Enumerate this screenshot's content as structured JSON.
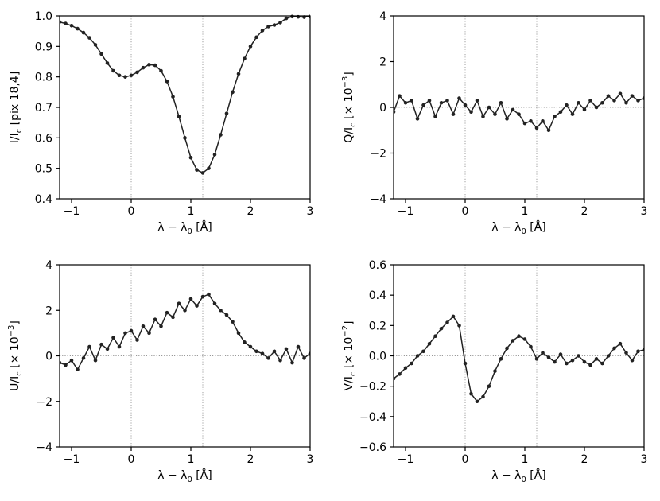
{
  "chart_data": [
    {
      "type": "line",
      "panel": "I",
      "xlabel": "λ − λ₀ [Å]",
      "ylabel": "I/I_c [pix 18,4]",
      "ylabel_parts": {
        "main": "I/I",
        "sub": "c",
        "rest": " [pix 18,4]"
      },
      "xlim": [
        -1.2,
        3.0
      ],
      "ylim": [
        0.4,
        1.0
      ],
      "xticks": [
        -1,
        0,
        1,
        2,
        3
      ],
      "xtick_labels": [
        "−1",
        "0",
        "1",
        "2",
        "3"
      ],
      "yticks": [
        0.4,
        0.5,
        0.6,
        0.7,
        0.8,
        0.9,
        1.0
      ],
      "ytick_labels": [
        "0.4",
        "0.5",
        "0.6",
        "0.7",
        "0.8",
        "0.9",
        "1.0"
      ],
      "vlines": [
        0,
        1.2
      ],
      "hline": null,
      "series": [
        {
          "x": [
            -1.2,
            -1.1,
            -1.0,
            -0.9,
            -0.8,
            -0.7,
            -0.6,
            -0.5,
            -0.4,
            -0.3,
            -0.2,
            -0.1,
            0.0,
            0.1,
            0.2,
            0.3,
            0.4,
            0.5,
            0.6,
            0.7,
            0.8,
            0.9,
            1.0,
            1.1,
            1.2,
            1.3,
            1.4,
            1.5,
            1.6,
            1.7,
            1.8,
            1.9,
            2.0,
            2.1,
            2.2,
            2.3,
            2.4,
            2.5,
            2.6,
            2.7,
            2.8,
            2.9,
            3.0
          ],
          "y": [
            0.98,
            0.975,
            0.968,
            0.958,
            0.945,
            0.928,
            0.905,
            0.875,
            0.845,
            0.82,
            0.805,
            0.8,
            0.805,
            0.815,
            0.83,
            0.84,
            0.838,
            0.82,
            0.785,
            0.735,
            0.67,
            0.6,
            0.535,
            0.495,
            0.485,
            0.5,
            0.545,
            0.61,
            0.68,
            0.75,
            0.81,
            0.86,
            0.9,
            0.93,
            0.952,
            0.965,
            0.97,
            0.978,
            0.992,
            0.998,
            0.997,
            0.996,
            0.998
          ]
        }
      ]
    },
    {
      "type": "line",
      "panel": "Q",
      "xlabel": "λ − λ₀ [Å]",
      "ylabel": "Q/I_c [× 10^−3]",
      "ylabel_parts": {
        "main": "Q/I",
        "sub": "c",
        "rest": " [× 10",
        "sup": "−3",
        "end": "]"
      },
      "xlim": [
        -1.2,
        3.0
      ],
      "ylim": [
        -4,
        4
      ],
      "xticks": [
        -1,
        0,
        1,
        2,
        3
      ],
      "xtick_labels": [
        "−1",
        "0",
        "1",
        "2",
        "3"
      ],
      "yticks": [
        -4,
        -2,
        0,
        2,
        4
      ],
      "ytick_labels": [
        "−4",
        "−2",
        "0",
        "2",
        "4"
      ],
      "vlines": [
        0,
        1.2
      ],
      "hline": 0,
      "series": [
        {
          "x": [
            -1.2,
            -1.1,
            -1.0,
            -0.9,
            -0.8,
            -0.7,
            -0.6,
            -0.5,
            -0.4,
            -0.3,
            -0.2,
            -0.1,
            0.0,
            0.1,
            0.2,
            0.3,
            0.4,
            0.5,
            0.6,
            0.7,
            0.8,
            0.9,
            1.0,
            1.1,
            1.2,
            1.3,
            1.4,
            1.5,
            1.6,
            1.7,
            1.8,
            1.9,
            2.0,
            2.1,
            2.2,
            2.3,
            2.4,
            2.5,
            2.6,
            2.7,
            2.8,
            2.9,
            3.0
          ],
          "y": [
            -0.2,
            0.5,
            0.2,
            0.3,
            -0.5,
            0.1,
            0.3,
            -0.4,
            0.2,
            0.3,
            -0.3,
            0.4,
            0.1,
            -0.2,
            0.3,
            -0.4,
            0.0,
            -0.3,
            0.2,
            -0.5,
            -0.1,
            -0.3,
            -0.7,
            -0.6,
            -0.9,
            -0.6,
            -1.0,
            -0.4,
            -0.2,
            0.1,
            -0.3,
            0.2,
            -0.1,
            0.3,
            0.0,
            0.2,
            0.5,
            0.3,
            0.6,
            0.2,
            0.5,
            0.3,
            0.4
          ]
        }
      ]
    },
    {
      "type": "line",
      "panel": "U",
      "xlabel": "λ − λ₀ [Å]",
      "ylabel": "U/I_c [× 10^−3]",
      "ylabel_parts": {
        "main": "U/I",
        "sub": "c",
        "rest": " [× 10",
        "sup": "−3",
        "end": "]"
      },
      "xlim": [
        -1.2,
        3.0
      ],
      "ylim": [
        -4,
        4
      ],
      "xticks": [
        -1,
        0,
        1,
        2,
        3
      ],
      "xtick_labels": [
        "−1",
        "0",
        "1",
        "2",
        "3"
      ],
      "yticks": [
        -4,
        -2,
        0,
        2,
        4
      ],
      "ytick_labels": [
        "−4",
        "−2",
        "0",
        "2",
        "4"
      ],
      "vlines": [
        0,
        1.2
      ],
      "hline": 0,
      "series": [
        {
          "x": [
            -1.2,
            -1.1,
            -1.0,
            -0.9,
            -0.8,
            -0.7,
            -0.6,
            -0.5,
            -0.4,
            -0.3,
            -0.2,
            -0.1,
            0.0,
            0.1,
            0.2,
            0.3,
            0.4,
            0.5,
            0.6,
            0.7,
            0.8,
            0.9,
            1.0,
            1.1,
            1.2,
            1.3,
            1.4,
            1.5,
            1.6,
            1.7,
            1.8,
            1.9,
            2.0,
            2.1,
            2.2,
            2.3,
            2.4,
            2.5,
            2.6,
            2.7,
            2.8,
            2.9,
            3.0
          ],
          "y": [
            -0.3,
            -0.4,
            -0.2,
            -0.6,
            -0.1,
            0.4,
            -0.2,
            0.5,
            0.3,
            0.8,
            0.4,
            1.0,
            1.1,
            0.7,
            1.3,
            1.0,
            1.6,
            1.3,
            1.9,
            1.7,
            2.3,
            2.0,
            2.5,
            2.2,
            2.6,
            2.7,
            2.3,
            2.0,
            1.8,
            1.5,
            1.0,
            0.6,
            0.4,
            0.2,
            0.1,
            -0.1,
            0.2,
            -0.2,
            0.3,
            -0.3,
            0.4,
            -0.1,
            0.1
          ]
        }
      ]
    },
    {
      "type": "line",
      "panel": "V",
      "xlabel": "λ − λ₀ [Å]",
      "ylabel": "V/I_c [× 10^−2]",
      "ylabel_parts": {
        "main": "V/I",
        "sub": "c",
        "rest": " [× 10",
        "sup": "−2",
        "end": "]"
      },
      "xlim": [
        -1.2,
        3.0
      ],
      "ylim": [
        -0.6,
        0.6
      ],
      "xticks": [
        -1,
        0,
        1,
        2,
        3
      ],
      "xtick_labels": [
        "−1",
        "0",
        "1",
        "2",
        "3"
      ],
      "yticks": [
        -0.6,
        -0.4,
        -0.2,
        0.0,
        0.2,
        0.4,
        0.6
      ],
      "ytick_labels": [
        "−0.6",
        "−0.4",
        "−0.2",
        "0.0",
        "0.2",
        "0.4",
        "0.6"
      ],
      "vlines": [
        0,
        1.2
      ],
      "hline": 0,
      "series": [
        {
          "x": [
            -1.2,
            -1.1,
            -1.0,
            -0.9,
            -0.8,
            -0.7,
            -0.6,
            -0.5,
            -0.4,
            -0.3,
            -0.2,
            -0.1,
            0.0,
            0.1,
            0.2,
            0.3,
            0.4,
            0.5,
            0.6,
            0.7,
            0.8,
            0.9,
            1.0,
            1.1,
            1.2,
            1.3,
            1.4,
            1.5,
            1.6,
            1.7,
            1.8,
            1.9,
            2.0,
            2.1,
            2.2,
            2.3,
            2.4,
            2.5,
            2.6,
            2.7,
            2.8,
            2.9,
            3.0
          ],
          "y": [
            -0.15,
            -0.12,
            -0.08,
            -0.05,
            0.0,
            0.03,
            0.08,
            0.13,
            0.18,
            0.22,
            0.26,
            0.2,
            -0.05,
            -0.25,
            -0.3,
            -0.27,
            -0.2,
            -0.1,
            -0.02,
            0.05,
            0.1,
            0.13,
            0.11,
            0.06,
            -0.02,
            0.02,
            -0.01,
            -0.04,
            0.01,
            -0.05,
            -0.03,
            0.0,
            -0.04,
            -0.06,
            -0.02,
            -0.05,
            0.0,
            0.05,
            0.08,
            0.02,
            -0.03,
            0.03,
            0.04
          ]
        }
      ]
    }
  ]
}
